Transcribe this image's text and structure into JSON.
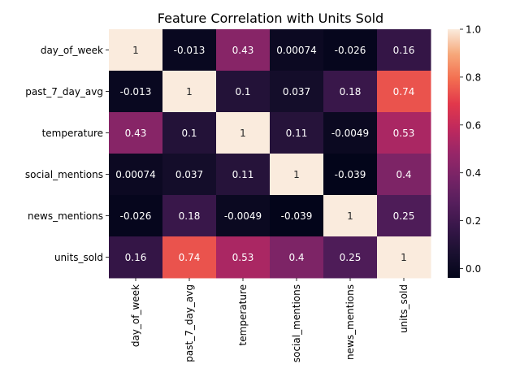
{
  "chart_data": {
    "type": "heatmap",
    "title": "Feature Correlation with Units Sold",
    "row_labels": [
      "day_of_week",
      "past_7_day_avg",
      "temperature",
      "social_mentions",
      "news_mentions",
      "units_sold"
    ],
    "col_labels": [
      "day_of_week",
      "past_7_day_avg",
      "temperature",
      "social_mentions",
      "news_mentions",
      "units_sold"
    ],
    "values": [
      [
        1,
        -0.013,
        0.43,
        0.00074,
        -0.026,
        0.16
      ],
      [
        -0.013,
        1,
        0.1,
        0.037,
        0.18,
        0.74
      ],
      [
        0.43,
        0.1,
        1,
        0.11,
        -0.0049,
        0.53
      ],
      [
        0.00074,
        0.037,
        0.11,
        1,
        -0.039,
        0.4
      ],
      [
        -0.026,
        0.18,
        -0.0049,
        -0.039,
        1,
        0.25
      ],
      [
        0.16,
        0.74,
        0.53,
        0.4,
        0.25,
        1
      ]
    ],
    "annotations": [
      [
        "1",
        "-0.013",
        "0.43",
        "0.00074",
        "-0.026",
        "0.16"
      ],
      [
        "-0.013",
        "1",
        "0.1",
        "0.037",
        "0.18",
        "0.74"
      ],
      [
        "0.43",
        "0.1",
        "1",
        "0.11",
        "-0.0049",
        "0.53"
      ],
      [
        "0.00074",
        "0.037",
        "0.11",
        "1",
        "-0.039",
        "0.4"
      ],
      [
        "-0.026",
        "0.18",
        "-0.0049",
        "-0.039",
        "1",
        "0.25"
      ],
      [
        "0.16",
        "0.74",
        "0.53",
        "0.4",
        "0.25",
        "1"
      ]
    ],
    "colorbar": {
      "colormap": "rocket",
      "vmin": -0.039,
      "vmax": 1,
      "ticks": [
        0.0,
        0.2,
        0.4,
        0.6,
        0.8,
        1.0
      ],
      "tick_labels": [
        "0.0",
        "0.2",
        "0.4",
        "0.6",
        "0.8",
        "1.0"
      ]
    },
    "grid": false
  }
}
